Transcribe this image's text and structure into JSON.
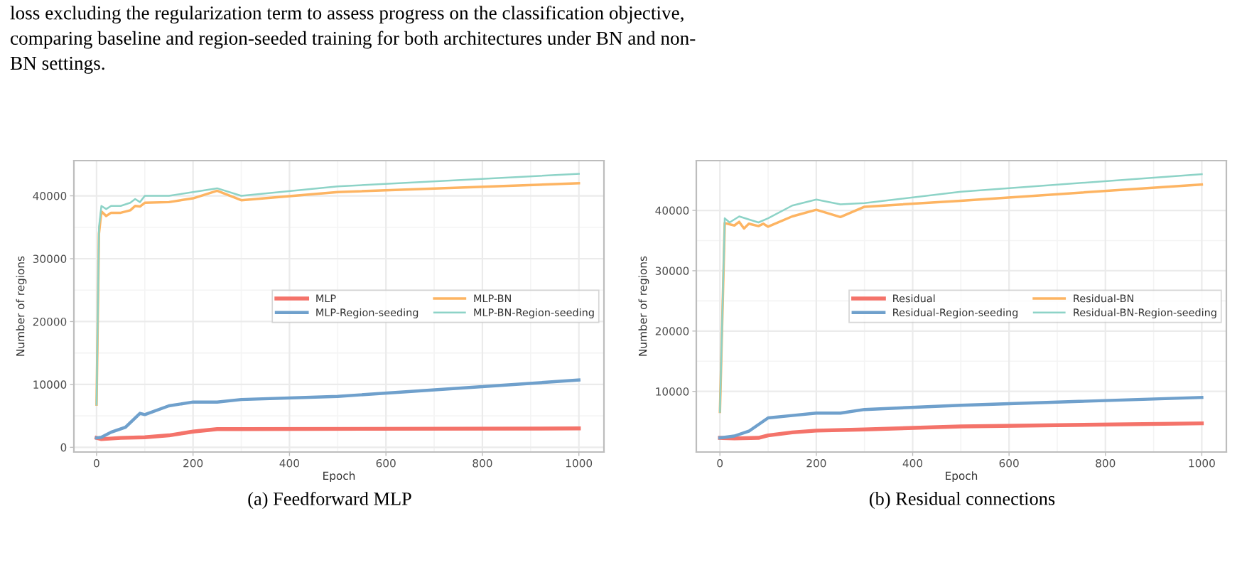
{
  "chart_data": [
    {
      "type": "line",
      "xlabel": "Epoch",
      "ylabel": "Number of regions",
      "xlim": [
        -47,
        1052
      ],
      "ylim": [
        -750,
        45600
      ],
      "xticks": [
        0,
        200,
        400,
        600,
        800,
        1000
      ],
      "yticks": [
        0,
        10000,
        20000,
        30000,
        40000
      ],
      "grid": true,
      "legend": "right",
      "line_style": "solid",
      "series": [
        {
          "name": "MLP",
          "color": "#f4736a",
          "x": [
            0,
            10,
            50,
            100,
            150,
            200,
            250,
            300,
            1000
          ],
          "values": [
            1500,
            1300,
            1500,
            1600,
            1900,
            2500,
            2900,
            2900,
            3000
          ]
        },
        {
          "name": "MLP-Region-seeding",
          "color": "#6fa0cc",
          "x": [
            0,
            10,
            30,
            60,
            90,
            100,
            150,
            200,
            250,
            300,
            500,
            1000
          ],
          "values": [
            1500,
            1600,
            2400,
            3200,
            5400,
            5200,
            6600,
            7200,
            7200,
            7600,
            8100,
            10700
          ]
        },
        {
          "name": "MLP-BN",
          "color": "#fdb462",
          "x": [
            0,
            5,
            10,
            20,
            30,
            50,
            70,
            80,
            90,
            100,
            150,
            200,
            250,
            300,
            500,
            1000
          ],
          "values": [
            6800,
            34000,
            37500,
            36800,
            37300,
            37300,
            37700,
            38400,
            38300,
            38900,
            39000,
            39600,
            40800,
            39300,
            40600,
            42000
          ]
        },
        {
          "name": "MLP-BN-Region-seeding",
          "color": "#8dd3c7",
          "x": [
            0,
            5,
            10,
            20,
            30,
            50,
            70,
            80,
            90,
            100,
            150,
            200,
            250,
            300,
            500,
            1000
          ],
          "values": [
            6800,
            35000,
            38400,
            37900,
            38400,
            38400,
            38900,
            39500,
            39000,
            40000,
            40000,
            40600,
            41200,
            40000,
            41500,
            43500
          ]
        }
      ],
      "annotations": [
        "loss excluding the regularization term to assess progress on the classification objective,\ncomparing baseline and region-seeded training for both architectures under BN and non-\nBN settings.",
        "(a) Feedforward MLP"
      ]
    },
    {
      "type": "line",
      "xlabel": "Epoch",
      "ylabel": "Number of regions",
      "xlim": [
        -49,
        1051
      ],
      "ylim": [
        -50,
        48250
      ],
      "xticks": [
        0,
        200,
        400,
        600,
        800,
        1000
      ],
      "yticks": [
        10000,
        20000,
        30000,
        40000
      ],
      "grid": true,
      "legend": "right",
      "line_style": "solid",
      "series": [
        {
          "name": "Residual",
          "color": "#f4736a",
          "x": [
            0,
            30,
            80,
            100,
            150,
            200,
            300,
            500,
            1000
          ],
          "values": [
            2300,
            2200,
            2300,
            2700,
            3200,
            3500,
            3700,
            4200,
            4700
          ]
        },
        {
          "name": "Residual-Region-seeding",
          "color": "#6fa0cc",
          "x": [
            0,
            30,
            60,
            100,
            150,
            200,
            250,
            300,
            500,
            1000
          ],
          "values": [
            2300,
            2600,
            3400,
            5600,
            6000,
            6400,
            6400,
            7000,
            7700,
            9000
          ]
        },
        {
          "name": "Residual-BN",
          "color": "#fdb462",
          "x": [
            0,
            10,
            30,
            40,
            50,
            60,
            80,
            90,
            100,
            150,
            200,
            250,
            300,
            500,
            1000
          ],
          "values": [
            6600,
            37900,
            37500,
            38100,
            37000,
            37800,
            37400,
            37800,
            37300,
            39000,
            40100,
            38900,
            40600,
            41600,
            44300
          ]
        },
        {
          "name": "Residual-BN-Region-seeding",
          "color": "#8dd3c7",
          "x": [
            0,
            10,
            20,
            40,
            80,
            100,
            150,
            200,
            250,
            300,
            500,
            1000
          ],
          "values": [
            6600,
            38700,
            38000,
            39000,
            38000,
            38700,
            40800,
            41800,
            41000,
            41200,
            43100,
            46000
          ]
        }
      ],
      "annotations": [
        "(b) Residual connections"
      ]
    }
  ]
}
